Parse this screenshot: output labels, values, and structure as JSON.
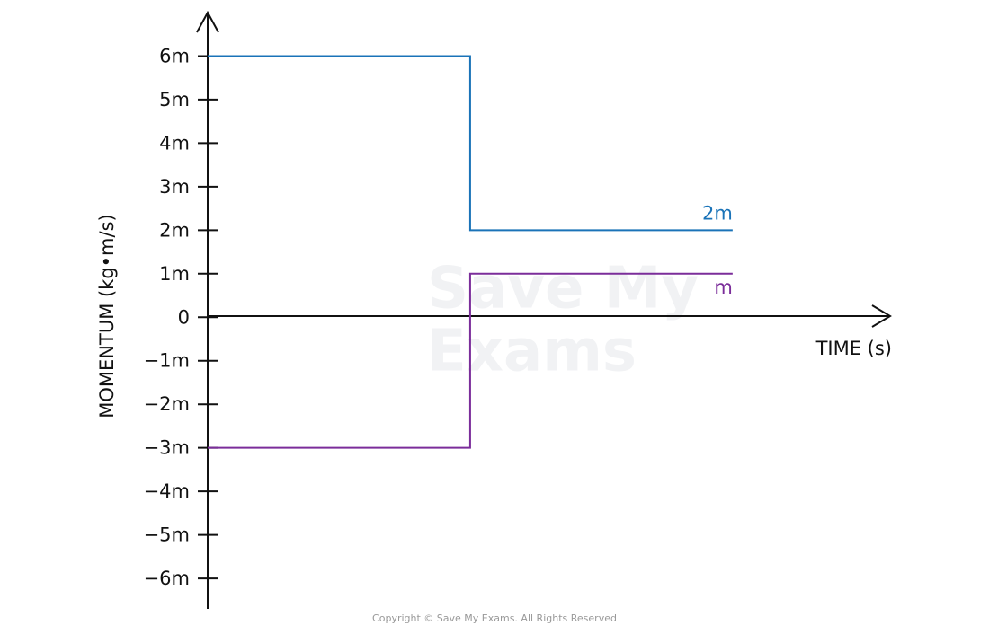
{
  "chart_data": {
    "type": "line",
    "y_label": "MOMENTUM (kg•m/s)",
    "x_label": "TIME (s)",
    "watermark": [
      "Save My",
      "Exams"
    ],
    "copyright": "Copyright © Save My Exams. All Rights Reserved",
    "x": [
      0,
      1,
      1,
      2
    ],
    "xlim": [
      0,
      2.6
    ],
    "ylim": [
      -6.7,
      7
    ],
    "yticks": [
      {
        "value": 6,
        "label": "6m"
      },
      {
        "value": 5,
        "label": "5m"
      },
      {
        "value": 4,
        "label": "4m"
      },
      {
        "value": 3,
        "label": "3m"
      },
      {
        "value": 2,
        "label": "2m"
      },
      {
        "value": 1,
        "label": "1m"
      },
      0,
      {
        "value": -1,
        "label": "−1m"
      },
      {
        "value": -2,
        "label": "−2m"
      },
      {
        "value": -3,
        "label": "−3m"
      },
      {
        "value": -4,
        "label": "−4m"
      },
      {
        "value": -5,
        "label": "−5m"
      },
      {
        "value": -6,
        "label": "−6m"
      }
    ],
    "series": [
      {
        "name": "2m",
        "color": "#1a73b8",
        "values": [
          6,
          6,
          2,
          2
        ]
      },
      {
        "name": "m",
        "color": "#7b2d9a",
        "values": [
          -3,
          -3,
          1,
          1
        ]
      }
    ]
  }
}
